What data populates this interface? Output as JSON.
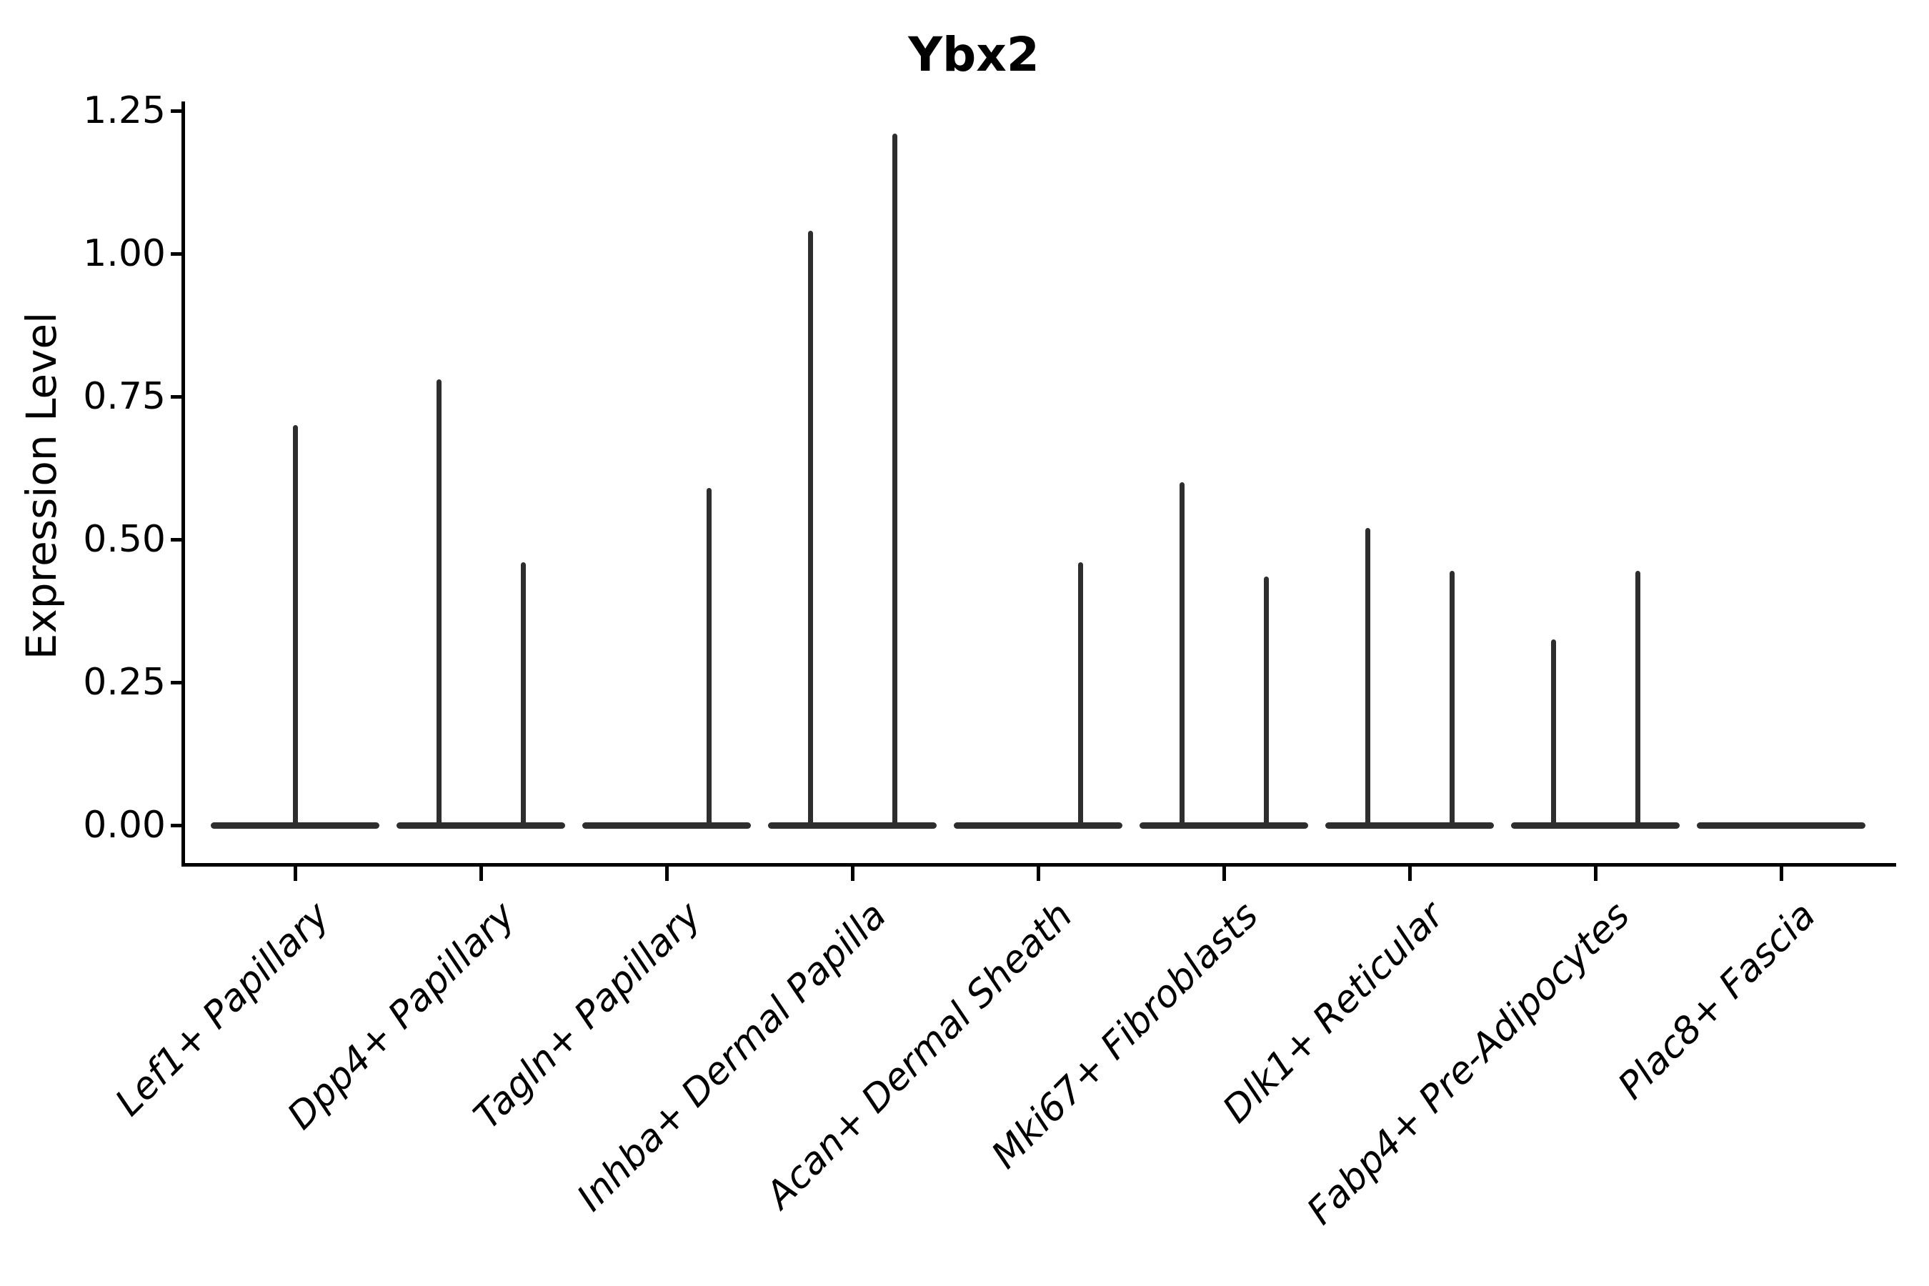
{
  "title": "Ybx2",
  "axes": {
    "ylabel": "Expression Level",
    "ytick_labels": [
      "0.00",
      "0.25",
      "0.50",
      "0.75",
      "1.00",
      "1.25"
    ]
  },
  "colors": {
    "violin_line": "#2e2e2e",
    "axis_line": "#000000",
    "text": "#000000",
    "background": "#ffffff"
  },
  "chart_data": {
    "type": "violin",
    "title": "Ybx2",
    "xlabel": "",
    "ylabel": "Expression Level",
    "ylim": [
      0,
      1.25
    ],
    "yticks": [
      0,
      0.25,
      0.5,
      0.75,
      1.0,
      1.25
    ],
    "ytick_labels": [
      "0.00",
      "0.25",
      "0.50",
      "0.75",
      "1.00",
      "1.25"
    ],
    "grid": false,
    "legend": "none",
    "categories": [
      "Lef1+ Papillary",
      "Dpp4+ Papillary",
      "Tagln+ Papillary",
      "Inhba+ Dermal Papilla",
      "Acan+ Dermal Sheath",
      "Mki67+ Fibroblasts",
      "Dlk1+ Reticular",
      "Fabp4+ Pre-Adipocytes",
      "Plac8+ Fascia"
    ],
    "description": "Violin plot of Ybx2 expression; each category shows flat violin bodies at 0 with thin vertical tails up to the max expression value. Categories contain either one full-width violin or two half-width violins.",
    "violins": [
      {
        "category": "Lef1+ Papillary",
        "bodies": [
          {
            "position": "full",
            "base_value": 0,
            "tail_max": 0.7
          }
        ]
      },
      {
        "category": "Dpp4+ Papillary",
        "bodies": [
          {
            "position": "left",
            "base_value": 0,
            "tail_max": 0.78
          },
          {
            "position": "right",
            "base_value": 0,
            "tail_max": 0.46
          }
        ]
      },
      {
        "category": "Tagln+ Papillary",
        "bodies": [
          {
            "position": "left",
            "base_value": 0,
            "tail_max": null
          },
          {
            "position": "right",
            "base_value": 0,
            "tail_max": 0.59
          }
        ]
      },
      {
        "category": "Inhba+ Dermal Papilla",
        "bodies": [
          {
            "position": "left",
            "base_value": 0,
            "tail_max": 1.04
          },
          {
            "position": "right",
            "base_value": 0,
            "tail_max": 1.21
          }
        ]
      },
      {
        "category": "Acan+ Dermal Sheath",
        "bodies": [
          {
            "position": "left",
            "base_value": 0,
            "tail_max": null
          },
          {
            "position": "right",
            "base_value": 0,
            "tail_max": 0.46
          }
        ]
      },
      {
        "category": "Mki67+ Fibroblasts",
        "bodies": [
          {
            "position": "left",
            "base_value": 0,
            "tail_max": 0.6
          },
          {
            "position": "right",
            "base_value": 0,
            "tail_max": 0.435
          }
        ]
      },
      {
        "category": "Dlk1+ Reticular",
        "bodies": [
          {
            "position": "left",
            "base_value": 0,
            "tail_max": 0.52
          },
          {
            "position": "right",
            "base_value": 0,
            "tail_max": 0.445
          }
        ]
      },
      {
        "category": "Fabp4+ Pre-Adipocytes",
        "bodies": [
          {
            "position": "left",
            "base_value": 0,
            "tail_max": 0.325
          },
          {
            "position": "right",
            "base_value": 0,
            "tail_max": 0.445
          }
        ]
      },
      {
        "category": "Plac8+ Fascia",
        "bodies": [
          {
            "position": "full",
            "base_value": 0,
            "tail_max": null
          }
        ]
      }
    ]
  }
}
